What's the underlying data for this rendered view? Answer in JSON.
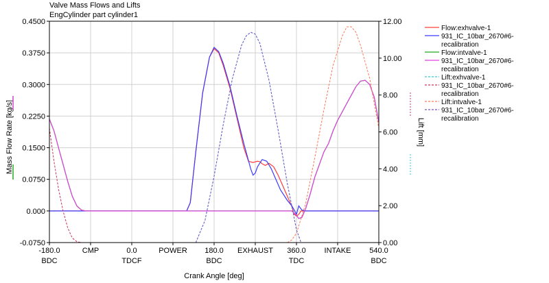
{
  "chart_data": {
    "type": "line",
    "title": "Valve Mass Flows and Lifts",
    "subtitle": "EngCylinder part cylinder1",
    "xlabel": "Crank Angle [deg]",
    "ylabel_left": "Mass Flow Rate [kg/s]",
    "ylabel_right": "Lift [mm]",
    "xlim": [
      -180,
      540
    ],
    "ylim_left": [
      -0.075,
      0.45
    ],
    "ylim_right": [
      0,
      12
    ],
    "grid": true,
    "legend_position": "right",
    "x_ticks": [
      {
        "value": -180,
        "label": "-180.0",
        "sublabel": "BDC"
      },
      {
        "value": 0,
        "label": "0.0",
        "sublabel": "TDCF"
      },
      {
        "value": 180,
        "label": "180.0",
        "sublabel": "BDC"
      },
      {
        "value": 360,
        "label": "360.0",
        "sublabel": "TDC"
      },
      {
        "value": 540,
        "label": "540.0",
        "sublabel": "BDC"
      }
    ],
    "phase_labels": [
      {
        "value": -90,
        "label": "CMP"
      },
      {
        "value": 90,
        "label": "POWER"
      },
      {
        "value": 270,
        "label": "EXHAUST"
      },
      {
        "value": 450,
        "label": "INTAKE"
      }
    ],
    "y_ticks_left": [
      "-0.0750",
      "0.000",
      "0.0750",
      "0.1500",
      "0.2250",
      "0.3000",
      "0.3750",
      "0.4500"
    ],
    "y_tick_values_left": [
      -0.075,
      0,
      0.075,
      0.15,
      0.225,
      0.3,
      0.375,
      0.45
    ],
    "y_ticks_right": [
      "0.00",
      "2.00",
      "4.00",
      "6.00",
      "8.00",
      "10.00",
      "12.00"
    ],
    "y_tick_values_right": [
      0,
      2,
      4,
      6,
      8,
      10,
      12
    ],
    "series": [
      {
        "name": "Flow:exhvalve-1",
        "axis": "left",
        "color": "#ff3b3b",
        "dash": "solid",
        "x": [
          -180,
          120,
          128,
          140,
          155,
          170,
          180,
          190,
          200,
          215,
          230,
          245,
          255,
          265,
          275,
          280,
          285,
          292,
          300,
          310,
          320,
          330,
          340,
          350,
          355,
          360,
          365,
          370,
          380,
          390,
          540
        ],
        "y": [
          0,
          0,
          0.02,
          0.14,
          0.28,
          0.365,
          0.385,
          0.375,
          0.345,
          0.29,
          0.22,
          0.15,
          0.118,
          0.115,
          0.118,
          0.117,
          0.112,
          0.108,
          0.113,
          0.105,
          0.085,
          0.06,
          0.035,
          0.01,
          -0.008,
          -0.012,
          -0.008,
          0,
          0,
          0,
          0
        ]
      },
      {
        "name": "931_IC_10bar_2670#6-recalibration",
        "axis": "left",
        "color": "#3b3bff",
        "dash": "solid",
        "x": [
          -180,
          120,
          128,
          140,
          155,
          170,
          180,
          190,
          200,
          215,
          230,
          245,
          255,
          260,
          265,
          270,
          275,
          285,
          295,
          305,
          315,
          325,
          340,
          350,
          355,
          360,
          365,
          372,
          380,
          540
        ],
        "y": [
          0,
          0,
          0.02,
          0.14,
          0.28,
          0.365,
          0.388,
          0.378,
          0.35,
          0.295,
          0.225,
          0.16,
          0.12,
          0.1,
          0.085,
          0.09,
          0.105,
          0.122,
          0.118,
          0.1,
          0.075,
          0.05,
          0.025,
          0.012,
          0.002,
          -0.008,
          0.012,
          0.002,
          0,
          0
        ]
      },
      {
        "name": "Flow:intvalve-1",
        "axis": "left",
        "color": "#22aa22",
        "dash": "solid",
        "x": [
          -180,
          -170,
          -160,
          -150,
          -140,
          -130,
          -120,
          -110,
          -100,
          350,
          360,
          365,
          372,
          380,
          390,
          400,
          410,
          420,
          430,
          440,
          450,
          460,
          470,
          480,
          490,
          500,
          510,
          520,
          530,
          540
        ],
        "y": [
          0.218,
          0.19,
          0.15,
          0.11,
          0.07,
          0.035,
          0.012,
          0.002,
          0,
          0,
          -0.01,
          -0.018,
          -0.015,
          0.005,
          0.04,
          0.08,
          0.11,
          0.14,
          0.16,
          0.19,
          0.215,
          0.235,
          0.255,
          0.275,
          0.295,
          0.308,
          0.31,
          0.3,
          0.27,
          0.21
        ]
      },
      {
        "name": "931_IC_10bar_2670#6-recalibration",
        "axis": "left",
        "color": "#e040e0",
        "dash": "solid",
        "x": [
          -180,
          -170,
          -160,
          -150,
          -140,
          -130,
          -120,
          -110,
          -100,
          350,
          360,
          365,
          372,
          380,
          390,
          400,
          410,
          420,
          430,
          440,
          450,
          460,
          470,
          480,
          490,
          500,
          510,
          520,
          530,
          540
        ],
        "y": [
          0.218,
          0.19,
          0.15,
          0.11,
          0.07,
          0.035,
          0.012,
          0.002,
          0,
          0,
          -0.01,
          -0.018,
          -0.015,
          0.005,
          0.04,
          0.08,
          0.11,
          0.14,
          0.16,
          0.19,
          0.215,
          0.235,
          0.255,
          0.275,
          0.295,
          0.308,
          0.31,
          0.3,
          0.27,
          0.21
        ]
      },
      {
        "name": "Lift:exhvalve-1",
        "axis": "right",
        "color": "#33cccc",
        "dash": "dot",
        "x": [
          140,
          160,
          180,
          200,
          220,
          240,
          250,
          260,
          270,
          280,
          300,
          320,
          340,
          360,
          370
        ],
        "y": [
          0,
          1.2,
          3.6,
          6.4,
          8.9,
          10.7,
          11.2,
          11.4,
          11.3,
          10.8,
          8.8,
          6.1,
          3.2,
          0.7,
          0
        ]
      },
      {
        "name": "931_IC_10bar_2670#6-recalibration",
        "axis": "right",
        "color": "#cc3355",
        "dash": "dot",
        "x": [
          -180,
          -170,
          -160,
          -150,
          -140,
          -130,
          -120,
          -110,
          -100
        ],
        "y": [
          6.2,
          4.4,
          2.9,
          1.7,
          0.8,
          0.25,
          0.05,
          0,
          0
        ]
      },
      {
        "name": "Lift:intvalve-1",
        "axis": "right",
        "color": "#ff7755",
        "dash": "dot",
        "x": [
          340,
          350,
          360,
          380,
          400,
          420,
          440,
          460,
          470,
          480,
          490,
          500,
          520,
          540
        ],
        "y": [
          0,
          0.15,
          0.5,
          2.1,
          4.6,
          7.2,
          9.6,
          11.2,
          11.7,
          11.7,
          11.4,
          10.7,
          8.9,
          6.2
        ]
      },
      {
        "name": "931_IC_10bar_2670#6-recalibration",
        "axis": "right",
        "color": "#7755cc",
        "dash": "dot",
        "x": [
          140,
          160,
          180,
          200,
          220,
          240,
          250,
          260,
          270,
          280,
          300,
          320,
          340,
          360,
          370
        ],
        "y": [
          0,
          1.2,
          3.6,
          6.4,
          8.9,
          10.7,
          11.2,
          11.4,
          11.3,
          10.8,
          8.8,
          6.1,
          3.2,
          0.7,
          0
        ]
      }
    ],
    "legend": [
      {
        "lines": [
          "Flow:exhvalve-1"
        ],
        "color": "#ff3b3b",
        "dash": "solid"
      },
      {
        "lines": [
          "931_IC_10bar_2670#6-",
          "recalibration"
        ],
        "color": "#3b3bff",
        "dash": "solid"
      },
      {
        "lines": [
          "Flow:intvalve-1"
        ],
        "color": "#22aa22",
        "dash": "solid"
      },
      {
        "lines": [
          "931_IC_10bar_2670#6-",
          "recalibration"
        ],
        "color": "#e040e0",
        "dash": "solid"
      },
      {
        "lines": [
          "Lift:exhvalve-1"
        ],
        "color": "#33cccc",
        "dash": "dot"
      },
      {
        "lines": [
          "931_IC_10bar_2670#6-",
          "recalibration"
        ],
        "color": "#cc3355",
        "dash": "dot"
      },
      {
        "lines": [
          "Lift:intvalve-1"
        ],
        "color": "#ff7755",
        "dash": "dot"
      },
      {
        "lines": [
          "931_IC_10bar_2670#6-",
          "recalibration"
        ],
        "color": "#7755cc",
        "dash": "dot"
      }
    ],
    "colors": {
      "grid": "#d0d0d0",
      "axis": "#000000",
      "left_label_marks": "#cc44cc",
      "right_label_marks": "#33cccc"
    }
  }
}
